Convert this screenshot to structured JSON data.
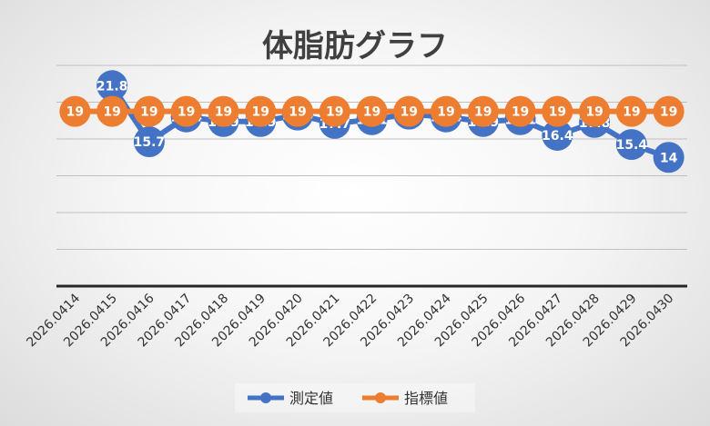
{
  "chart_data": {
    "type": "line",
    "title": "体脂肪グラフ",
    "categories": [
      "2026.0414",
      "2026.0415",
      "2026.0416",
      "2026.0417",
      "2026.0418",
      "2026.0419",
      "2026.0420",
      "2026.0421",
      "2026.0422",
      "2026.0423",
      "2026.0424",
      "2026.0425",
      "2026.0426",
      "2026.0427",
      "2026.0428",
      "2026.0429",
      "2026.0430"
    ],
    "series": [
      {
        "name": "測定値",
        "color": "#4472C4",
        "values": [
          null,
          21.8,
          15.7,
          18.4,
          17.9,
          17.9,
          18.6,
          17.7,
          18.1,
          18.7,
          18.4,
          17.9,
          18.1,
          16.4,
          17.8,
          15.4,
          14
        ]
      },
      {
        "name": "指標値",
        "color": "#ED7D31",
        "values": [
          19,
          19,
          19,
          19,
          19,
          19,
          19,
          19,
          19,
          19,
          19,
          19,
          19,
          19,
          19,
          19,
          19
        ]
      }
    ],
    "ylim": [
      0,
      24
    ],
    "y_gridlines": [
      4,
      8,
      12,
      16,
      20,
      24
    ],
    "grid": true,
    "legend": "bottom",
    "data_labels": true
  }
}
